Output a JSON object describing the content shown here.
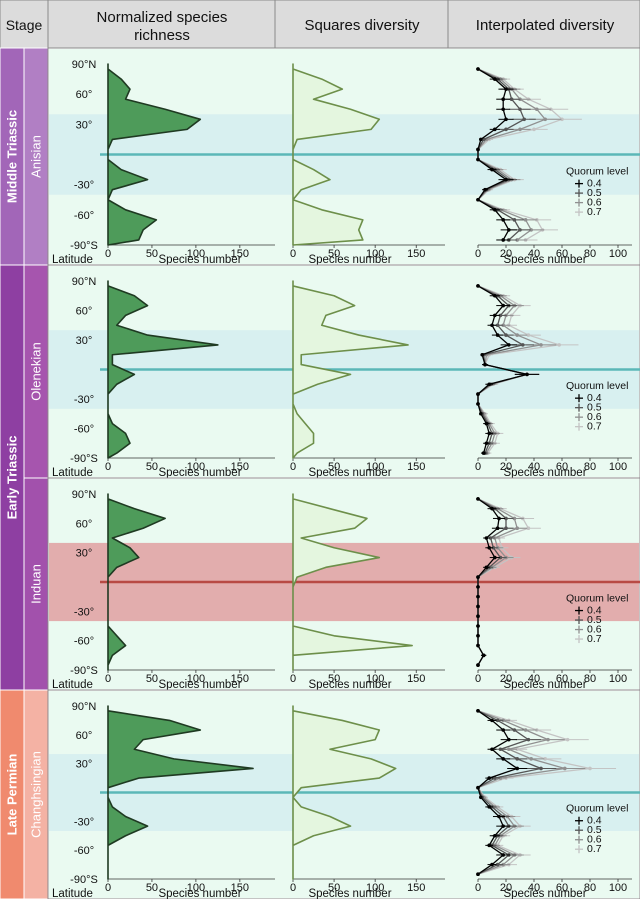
{
  "header": {
    "stage": "Stage",
    "col1": [
      "Normalized species",
      "richness"
    ],
    "col2": "Squares diversity",
    "col3": "Interpolated diversity"
  },
  "eras": [
    {
      "name": "Middle Triassic",
      "color": "#a266b8"
    },
    {
      "name": "Early Triassic",
      "color": "#8e3fa2"
    },
    {
      "name": "Late Permian",
      "color": "#f08a6e"
    }
  ],
  "stages": [
    {
      "name": "Anisian",
      "color": "#b17fc4",
      "band": "blue"
    },
    {
      "name": "Olenekian",
      "color": "#a655ae",
      "band": "blue"
    },
    {
      "name": "Induan",
      "color": "#a251ac",
      "band": "red"
    },
    {
      "name": "Changhsingian",
      "color": "#f4b2a4",
      "band": "blue"
    }
  ],
  "colors": {
    "header_bg": "#dcdcdc",
    "panel_bg": "#eafaf1",
    "band_blue": "#d8f0f0",
    "band_red": "#e2adad",
    "equator_blue": "#5bb7b7",
    "equator_red": "#b84a44",
    "richness_fill": "#4e9b5a",
    "squares_fill": "#e4f6df",
    "squares_line": "#6d8f4a"
  },
  "axis_labels": {
    "latitude": "Latitude",
    "x_title": "Species number",
    "legend_title": "Quorum level"
  },
  "lat_ticks": [
    "90°N",
    "60°",
    "30°",
    "",
    "-30°",
    "-60°",
    "-90°S"
  ],
  "chart_data": {
    "type": "line",
    "latitudes": [
      85,
      75,
      65,
      55,
      45,
      35,
      25,
      15,
      5,
      -5,
      -15,
      -25,
      -35,
      -45,
      -55,
      -65,
      -75,
      -85
    ],
    "x_ticks_richness": [
      "0",
      "50",
      "100",
      "150"
    ],
    "x_ticks_squares": [
      "0",
      "50",
      "100",
      "150"
    ],
    "x_ticks_interp": [
      "0",
      "20",
      "40",
      "60",
      "80",
      "100"
    ],
    "xlim_richness": [
      0,
      190
    ],
    "xlim_squares": [
      0,
      185
    ],
    "xlim_interp": [
      0,
      110
    ],
    "ylim": [
      -90,
      90
    ],
    "quorum_levels": [
      "0.4",
      "0.5",
      "0.6",
      "0.7"
    ],
    "quorum_colors": [
      "#000000",
      "#555555",
      "#909090",
      "#c4c4c4"
    ],
    "panels": [
      {
        "stage": "Anisian",
        "richness": [
          0,
          15,
          25,
          20,
          65,
          105,
          90,
          5,
          0,
          0,
          15,
          45,
          5,
          0,
          20,
          55,
          40,
          35
        ],
        "squares": [
          0,
          35,
          60,
          25,
          70,
          105,
          95,
          5,
          0,
          0,
          25,
          45,
          10,
          0,
          35,
          85,
          80,
          85
        ],
        "interp": [
          [
            0,
            12,
            20,
            18,
            18,
            20,
            12,
            2,
            0,
            0,
            10,
            20,
            5,
            0,
            12,
            18,
            22,
            18
          ],
          [
            0,
            14,
            22,
            24,
            30,
            33,
            20,
            4,
            0,
            0,
            12,
            22,
            6,
            0,
            14,
            26,
            30,
            22
          ],
          [
            0,
            16,
            24,
            30,
            42,
            48,
            30,
            6,
            0,
            0,
            14,
            24,
            7,
            0,
            16,
            34,
            38,
            28
          ],
          [
            0,
            18,
            26,
            36,
            52,
            60,
            40,
            8,
            0,
            0,
            16,
            26,
            8,
            0,
            18,
            42,
            46,
            34
          ]
        ]
      },
      {
        "stage": "Olenekian",
        "richness": [
          0,
          30,
          45,
          20,
          10,
          45,
          125,
          5,
          5,
          30,
          10,
          0,
          0,
          0,
          5,
          20,
          25,
          10
        ],
        "squares": [
          0,
          50,
          75,
          40,
          35,
          80,
          140,
          10,
          10,
          70,
          30,
          0,
          0,
          5,
          15,
          25,
          25,
          5
        ],
        "interp": [
          [
            0,
            12,
            18,
            12,
            10,
            14,
            22,
            3,
            5,
            35,
            8,
            0,
            0,
            2,
            6,
            8,
            6,
            4
          ],
          [
            0,
            14,
            22,
            16,
            14,
            20,
            32,
            4,
            5,
            35,
            9,
            0,
            0,
            3,
            7,
            10,
            8,
            5
          ],
          [
            0,
            16,
            26,
            20,
            18,
            28,
            45,
            6,
            5,
            35,
            10,
            0,
            0,
            4,
            8,
            12,
            10,
            6
          ],
          [
            0,
            18,
            30,
            24,
            22,
            36,
            58,
            8,
            5,
            35,
            11,
            0,
            0,
            5,
            9,
            14,
            12,
            7
          ]
        ]
      },
      {
        "stage": "Induan",
        "richness": [
          0,
          30,
          65,
          40,
          5,
          25,
          35,
          10,
          0,
          0,
          0,
          0,
          0,
          0,
          10,
          20,
          5,
          0
        ],
        "squares": [
          0,
          45,
          90,
          75,
          10,
          50,
          105,
          40,
          5,
          0,
          0,
          0,
          0,
          0,
          50,
          145,
          0,
          0
        ],
        "interp": [
          [
            0,
            10,
            15,
            14,
            6,
            8,
            12,
            6,
            0,
            0,
            0,
            0,
            0,
            0,
            0,
            0,
            4,
            0
          ],
          [
            0,
            12,
            20,
            20,
            9,
            11,
            16,
            8,
            0,
            0,
            0,
            0,
            0,
            0,
            0,
            0,
            4,
            0
          ],
          [
            0,
            14,
            26,
            28,
            12,
            14,
            20,
            10,
            0,
            0,
            0,
            0,
            0,
            0,
            0,
            0,
            4,
            0
          ],
          [
            0,
            16,
            32,
            36,
            15,
            17,
            24,
            12,
            0,
            0,
            0,
            0,
            0,
            0,
            0,
            0,
            4,
            0
          ]
        ]
      },
      {
        "stage": "Changhsingian",
        "richness": [
          0,
          70,
          105,
          40,
          30,
          75,
          165,
          35,
          0,
          0,
          5,
          20,
          45,
          20,
          0,
          0,
          0,
          0
        ],
        "squares": [
          0,
          60,
          105,
          100,
          45,
          95,
          125,
          105,
          10,
          0,
          10,
          45,
          70,
          25,
          0,
          0,
          0,
          0
        ],
        "interp": [
          [
            0,
            10,
            18,
            22,
            10,
            18,
            28,
            8,
            0,
            2,
            8,
            15,
            18,
            12,
            8,
            18,
            10,
            0
          ],
          [
            0,
            14,
            26,
            36,
            16,
            28,
            45,
            12,
            0,
            3,
            10,
            18,
            22,
            14,
            10,
            22,
            14,
            0
          ],
          [
            0,
            18,
            34,
            50,
            22,
            38,
            62,
            16,
            0,
            4,
            12,
            21,
            26,
            16,
            12,
            26,
            18,
            0
          ],
          [
            0,
            22,
            42,
            64,
            28,
            48,
            80,
            20,
            0,
            5,
            14,
            24,
            30,
            18,
            14,
            30,
            22,
            0
          ]
        ]
      }
    ]
  }
}
